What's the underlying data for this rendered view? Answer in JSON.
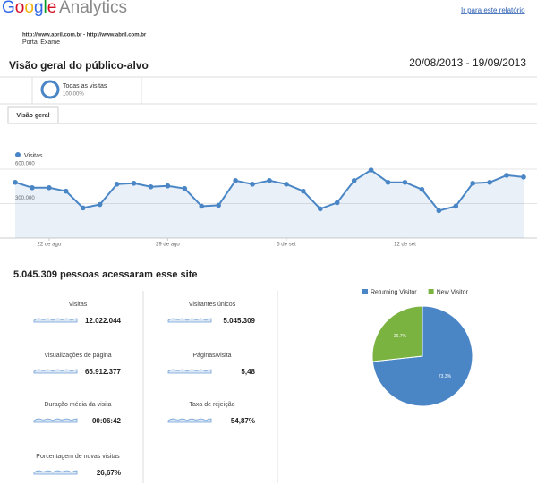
{
  "header": {
    "logo": "Google",
    "product": "Analytics",
    "link": "Ir para este relatório",
    "site": "http://www.abril.com.br - http://www.abril.com.br",
    "site_name": "Portal Exame"
  },
  "report": {
    "title": "Visão geral do público-alvo",
    "date_range": "20/08/2013 - 19/09/2013"
  },
  "segment": {
    "name": "Todas as visitas",
    "share": "100,00%"
  },
  "tab": "Visão geral",
  "chart_data": [
    {
      "type": "line",
      "series": [
        {
          "name": "Visitas",
          "color": "#4a86c5",
          "values": [
            485000,
            438000,
            438000,
            408000,
            262000,
            292000,
            469000,
            477000,
            446000,
            454000,
            431000,
            277000,
            285000,
            500000,
            469000,
            500000,
            469000,
            408000,
            254000,
            308000,
            500000,
            592000,
            485000,
            485000,
            423000,
            238000,
            277000,
            477000,
            485000,
            546000,
            531000
          ]
        }
      ],
      "categories": [
        null,
        null,
        "22 de ago",
        null,
        null,
        null,
        null,
        null,
        null,
        "29 de ago",
        null,
        null,
        null,
        null,
        null,
        null,
        "5 de set",
        null,
        null,
        null,
        null,
        null,
        null,
        "12 de set",
        null,
        null,
        null,
        null,
        null,
        null,
        null
      ],
      "ylim": [
        0,
        670000
      ],
      "yticks": [
        {
          "value": 600000,
          "label": "600.000"
        },
        {
          "value": 300000,
          "label": "300.000"
        }
      ],
      "grid": true
    },
    {
      "type": "pie",
      "categories": [
        "Returning Visitor",
        "New Visitor"
      ],
      "values": [
        73.3,
        26.7
      ],
      "value_labels": [
        "73.3%",
        "26.7%"
      ],
      "colors": [
        "#4a86c5",
        "#7ab340"
      ],
      "legend": "top"
    }
  ],
  "headline": "5.045.309 pessoas acessaram esse site",
  "metrics": [
    {
      "label": "Visitas",
      "value": "12.022.044"
    },
    {
      "label": "Visitantes únicos",
      "value": "5.045.309"
    },
    {
      "label": "Visualizações de página",
      "value": "65.912.377"
    },
    {
      "label": "Páginas/visita",
      "value": "5,48"
    },
    {
      "label": "Duração média da visita",
      "value": "00:06:42"
    },
    {
      "label": "Taxa de rejeição",
      "value": "54,87%"
    },
    {
      "label": "Porcentagem de novas visitas",
      "value": "26,67%"
    }
  ]
}
